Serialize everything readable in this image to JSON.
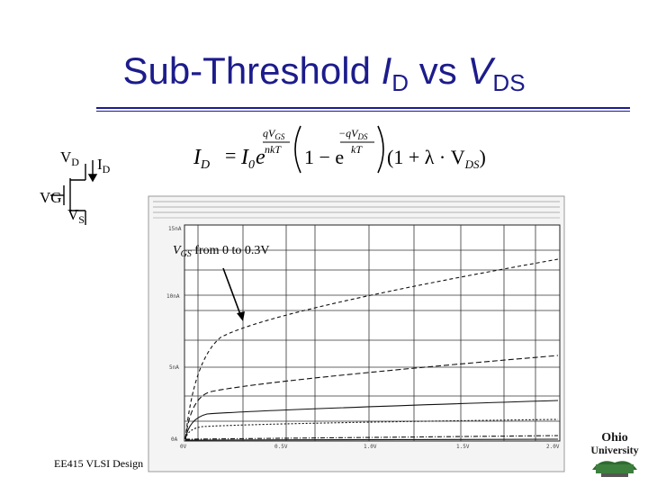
{
  "title": {
    "prefix": "Sub-Threshold ",
    "i1": "I",
    "s1": "D",
    "mid": " vs ",
    "i2": "V",
    "s2": "DS"
  },
  "transistor": {
    "vd": "V",
    "vd_sub": "D",
    "id": "I",
    "id_sub": "D",
    "vg": "VG",
    "vs": "V",
    "vs_sub": "S"
  },
  "equation": {
    "lhs": "I",
    "lhs_sub": "D",
    "i0": "I",
    "i0_sub": "0",
    "e": "e",
    "num1": "qV",
    "num1_sub": "GS",
    "den1": "nkT",
    "one_minus": "1 − e",
    "minus": "−",
    "num2": "qV",
    "num2_sub": "DS",
    "den2": "kT",
    "factor": "(1 + λ · V",
    "factor_sub": "DS",
    "factor_end": ")"
  },
  "plot": {
    "annotation": "V",
    "annotation_sub": "GS",
    "annotation_rest": " from 0 to 0.3V",
    "y_ticks": [
      "15nA",
      "10nA",
      "5nA",
      "0A"
    ],
    "x_ticks": [
      "0V",
      "0.5V",
      "1.0V",
      "1.5V",
      "2.0V"
    ]
  },
  "footer": "EE415 VLSI Design",
  "logo": {
    "line1": "Ohio",
    "line2": "University"
  }
}
